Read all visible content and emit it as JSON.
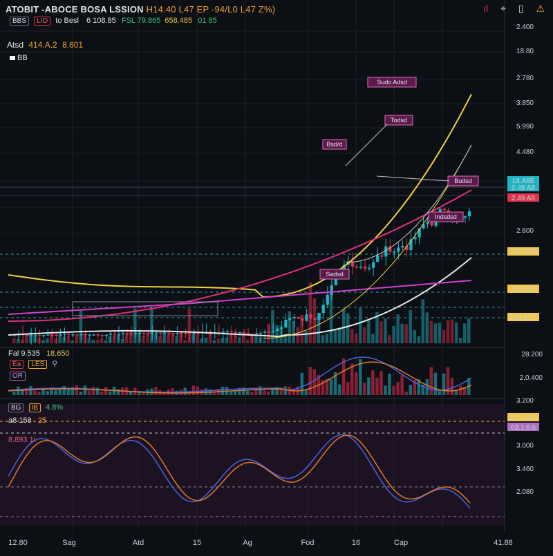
{
  "header": {
    "title": "ATOBIT -ABOCE BOSA LSSION",
    "ohlc": "H14.40 L47 EP -94/L0 L47 Z%)"
  },
  "toolbar": {
    "tag1": "BBS",
    "tag2": "LIO",
    "label": "to Besl",
    "v1": "6 108.85",
    "v2": "FSL 79.865",
    "v3": "658.485",
    "v4": "01 85"
  },
  "symbol": {
    "name": "Atsd",
    "value": "414.A.2",
    "extra": "8.601"
  },
  "fx_label": "BB",
  "top_icons": [
    "bars-icon",
    "pin-icon",
    "bookmark-icon",
    "warning-icon"
  ],
  "osc1": {
    "name": "Fal",
    "value": "9.535",
    "tag1": "Ea",
    "tag2": "LES",
    "val2": "18.650",
    "tag3": "OR"
  },
  "osc2": {
    "tag1": "BG",
    "tag2": "IB",
    "value": "4.8%",
    "line2": "a8 158",
    "line2b": "25",
    "line3": "8.893 1I"
  },
  "y_axis": [
    "2.400",
    "18.80",
    "2.780",
    "3.850",
    "5.990",
    "4.480",
    "2.600",
    "3.200",
    "3.000",
    "3.460",
    "2.080"
  ],
  "y_osc1": [
    "28.200",
    "2.0.400"
  ],
  "price_badges": [
    {
      "text": "18.A8E",
      "color": "#1fb4c4"
    },
    {
      "text": "0.49 A8",
      "color": "#1fb4c4"
    },
    {
      "text": "2.49 A8",
      "color": "#e0334c"
    },
    {
      "text": "108 8.88",
      "color": "#f2c84a"
    },
    {
      "text": "30.6.83",
      "color": "#f2c84a"
    },
    {
      "text": "108 8.77",
      "color": "#f2c84a"
    },
    {
      "text": "0.7.0.8.0",
      "color": "#f2c84a"
    },
    {
      "text": "03.1.6.6",
      "color": "#b070c0"
    }
  ],
  "annotations": [
    "Sudo Adsd",
    "Todsd",
    "Bsd/d",
    "Budsd",
    "Indsdsd",
    "Sadsd"
  ],
  "x_axis": [
    "12.80",
    "Sag",
    "Atd",
    "15",
    "Ag",
    "Fod",
    "16",
    "Cap",
    "41.88"
  ],
  "colors": {
    "up": "#1fb4c4",
    "down": "#e0334c",
    "ma_yellow": "#f2d13c",
    "ma_white": "#e8e8e8",
    "ma_pink": "#e0307a",
    "ma_magenta": "#d040d0",
    "osc_blue": "#4a63e0",
    "osc_orange": "#e07a2a"
  },
  "chart_data": {
    "type": "line",
    "title": "ATOBIT -ABOCE BOSA LSSION",
    "candles_close": [
      3.0,
      3.02,
      3.01,
      3.03,
      3.0,
      3.02,
      3.04,
      3.03,
      3.05,
      3.06,
      3.04,
      3.07,
      3.06,
      3.08,
      3.1,
      3.09,
      3.11,
      3.12,
      3.15,
      3.2,
      3.3,
      3.45,
      3.6,
      3.8,
      4.0,
      4.3,
      4.1,
      4.5,
      4.7,
      4.4,
      4.6,
      4.9,
      4.7,
      5.1,
      5.4,
      5.2,
      5.6,
      5.9,
      5.5,
      5.8
    ],
    "series": [
      {
        "name": "MA yellow",
        "color": "#f2d13c"
      },
      {
        "name": "MA white",
        "color": "#e8e8e8"
      },
      {
        "name": "MA pink",
        "color": "#e0307a"
      },
      {
        "name": "MA magenta",
        "color": "#d040d0"
      }
    ]
  }
}
